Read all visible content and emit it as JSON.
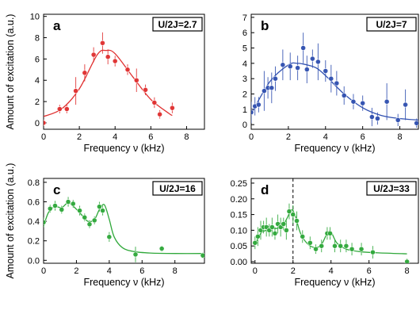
{
  "figure": {
    "ylabel_shared": "Amount of excitation (a.u.)"
  },
  "chart_data": [
    {
      "type": "scatter",
      "panel": "a",
      "badge": "U/2J=2.7",
      "xlabel": "Frequency ν (kHz)",
      "ylabel": "Amount of excitation (a.u.)",
      "xlim": [
        0,
        9
      ],
      "ylim": [
        -0.6,
        10.2
      ],
      "xticks": [
        0,
        2,
        4,
        6,
        8
      ],
      "yticks": [
        0,
        2,
        4,
        6,
        8,
        10
      ],
      "grid": false,
      "dashed_line_x": null,
      "color": "#e03030",
      "series": [
        {
          "points": [
            {
              "x": 0.0,
              "y": 0.0,
              "err": 0.3
            },
            {
              "x": 0.9,
              "y": 1.3,
              "err": 0.4
            },
            {
              "x": 1.3,
              "y": 1.3,
              "err": 0.4
            },
            {
              "x": 1.8,
              "y": 3.0,
              "err": 1.3
            },
            {
              "x": 2.3,
              "y": 4.7,
              "err": 0.8
            },
            {
              "x": 2.8,
              "y": 6.4,
              "err": 0.7
            },
            {
              "x": 3.3,
              "y": 7.5,
              "err": 1.0
            },
            {
              "x": 3.6,
              "y": 6.2,
              "err": 0.7
            },
            {
              "x": 4.0,
              "y": 5.8,
              "err": 0.5
            },
            {
              "x": 4.7,
              "y": 5.0,
              "err": 0.5
            },
            {
              "x": 5.2,
              "y": 4.0,
              "err": 1.1
            },
            {
              "x": 5.7,
              "y": 3.1,
              "err": 0.5
            },
            {
              "x": 6.2,
              "y": 1.9,
              "err": 0.5
            },
            {
              "x": 6.5,
              "y": 0.8,
              "err": 0.4
            },
            {
              "x": 7.2,
              "y": 1.4,
              "err": 0.5
            }
          ],
          "fit": {
            "x": [
              0,
              1,
              2,
              3,
              3.5,
              4,
              5,
              6,
              7,
              7.2
            ],
            "y": [
              0.6,
              1.3,
              3.2,
              6.4,
              6.8,
              6.5,
              4.3,
              2.2,
              0.9,
              0.7
            ]
          }
        }
      ]
    },
    {
      "type": "scatter",
      "panel": "b",
      "badge": "U/2J=7",
      "xlabel": "Frequency ν (kHz)",
      "ylabel": "",
      "xlim": [
        0,
        9
      ],
      "ylim": [
        -0.3,
        7.2
      ],
      "xticks": [
        0,
        2,
        4,
        6,
        8
      ],
      "yticks": [
        0,
        1,
        2,
        3,
        4,
        5,
        6,
        7
      ],
      "grid": false,
      "dashed_line_x": null,
      "color": "#3050b0",
      "series": [
        {
          "points": [
            {
              "x": 0.0,
              "y": 0.8,
              "err": 0.7
            },
            {
              "x": 0.2,
              "y": 1.2,
              "err": 0.6
            },
            {
              "x": 0.4,
              "y": 1.3,
              "err": 0.5
            },
            {
              "x": 0.7,
              "y": 2.2,
              "err": 1.3
            },
            {
              "x": 0.9,
              "y": 2.4,
              "err": 0.7
            },
            {
              "x": 1.1,
              "y": 2.4,
              "err": 1.0
            },
            {
              "x": 1.3,
              "y": 3.0,
              "err": 0.8
            },
            {
              "x": 1.7,
              "y": 3.9,
              "err": 1.0
            },
            {
              "x": 2.1,
              "y": 3.8,
              "err": 0.9
            },
            {
              "x": 2.5,
              "y": 3.7,
              "err": 0.8
            },
            {
              "x": 2.8,
              "y": 5.0,
              "err": 1.0
            },
            {
              "x": 3.0,
              "y": 3.6,
              "err": 0.9
            },
            {
              "x": 3.3,
              "y": 4.3,
              "err": 0.6
            },
            {
              "x": 3.6,
              "y": 4.1,
              "err": 1.2
            },
            {
              "x": 4.0,
              "y": 3.5,
              "err": 0.7
            },
            {
              "x": 4.3,
              "y": 3.0,
              "err": 0.9
            },
            {
              "x": 4.6,
              "y": 2.7,
              "err": 0.8
            },
            {
              "x": 5.0,
              "y": 1.9,
              "err": 0.6
            },
            {
              "x": 5.5,
              "y": 1.5,
              "err": 0.5
            },
            {
              "x": 6.0,
              "y": 1.4,
              "err": 0.5
            },
            {
              "x": 6.5,
              "y": 0.5,
              "err": 0.6
            },
            {
              "x": 6.8,
              "y": 0.4,
              "err": 0.4
            },
            {
              "x": 7.3,
              "y": 1.5,
              "err": 1.2
            },
            {
              "x": 7.9,
              "y": 0.3,
              "err": 0.4
            },
            {
              "x": 8.3,
              "y": 1.3,
              "err": 1.0
            },
            {
              "x": 8.9,
              "y": 0.1,
              "err": 0.3
            }
          ],
          "fit": {
            "x": [
              0,
              1,
              2,
              2.5,
              3,
              3.5,
              4,
              5,
              6,
              7,
              8,
              9
            ],
            "y": [
              0.7,
              2.8,
              3.9,
              4.0,
              3.9,
              3.7,
              3.2,
              2.0,
              1.1,
              0.6,
              0.4,
              0.3
            ]
          }
        }
      ]
    },
    {
      "type": "scatter",
      "panel": "c",
      "badge": "U/2J=16",
      "xlabel": "Frequency ν (kHz)",
      "ylabel": "Amount of excitation (a.u.)",
      "xlim": [
        0,
        9.8
      ],
      "ylim": [
        -0.03,
        0.84
      ],
      "xticks": [
        0,
        2,
        4,
        6,
        8
      ],
      "yticks": [
        0.0,
        0.2,
        0.4,
        0.6,
        0.8
      ],
      "grid": false,
      "dashed_line_x": null,
      "color": "#2fa83a",
      "series": [
        {
          "points": [
            {
              "x": 0.0,
              "y": 0.39,
              "err": 0.05
            },
            {
              "x": 0.4,
              "y": 0.53,
              "err": 0.04
            },
            {
              "x": 0.7,
              "y": 0.56,
              "err": 0.05
            },
            {
              "x": 1.1,
              "y": 0.52,
              "err": 0.04
            },
            {
              "x": 1.5,
              "y": 0.6,
              "err": 0.05
            },
            {
              "x": 1.8,
              "y": 0.58,
              "err": 0.04
            },
            {
              "x": 2.2,
              "y": 0.51,
              "err": 0.05
            },
            {
              "x": 2.5,
              "y": 0.44,
              "err": 0.04
            },
            {
              "x": 2.8,
              "y": 0.37,
              "err": 0.04
            },
            {
              "x": 3.1,
              "y": 0.41,
              "err": 0.04
            },
            {
              "x": 3.4,
              "y": 0.55,
              "err": 0.05
            },
            {
              "x": 3.6,
              "y": 0.51,
              "err": 0.05
            },
            {
              "x": 4.0,
              "y": 0.24,
              "err": 0.05
            },
            {
              "x": 5.6,
              "y": 0.06,
              "err": 0.08
            },
            {
              "x": 7.2,
              "y": 0.12,
              "err": 0.03
            },
            {
              "x": 9.7,
              "y": 0.05,
              "err": 0.03
            }
          ],
          "fit": {
            "x": [
              0,
              0.3,
              0.7,
              1.1,
              1.5,
              1.9,
              2.3,
              2.7,
              3.1,
              3.4,
              3.7,
              4.0,
              4.3,
              4.8,
              5.5,
              6.5,
              8,
              9.8
            ],
            "y": [
              0.35,
              0.49,
              0.55,
              0.54,
              0.59,
              0.54,
              0.47,
              0.4,
              0.42,
              0.52,
              0.57,
              0.42,
              0.24,
              0.13,
              0.09,
              0.075,
              0.07,
              0.07
            ]
          }
        }
      ]
    },
    {
      "type": "scatter",
      "panel": "d",
      "badge": "U/2J=33",
      "xlabel": "Frequency ν (kHz)",
      "ylabel": "",
      "xlim": [
        -0.2,
        8.6
      ],
      "ylim": [
        -0.005,
        0.265
      ],
      "xticks": [
        0,
        2,
        4,
        6,
        8
      ],
      "yticks": [
        0.0,
        0.05,
        0.1,
        0.15,
        0.2,
        0.25
      ],
      "grid": false,
      "dashed_line_x": 2.0,
      "color": "#2fa83a",
      "series": [
        {
          "points": [
            {
              "x": 0.0,
              "y": 0.06,
              "err": 0.02
            },
            {
              "x": 0.15,
              "y": 0.08,
              "err": 0.03
            },
            {
              "x": 0.3,
              "y": 0.1,
              "err": 0.03
            },
            {
              "x": 0.45,
              "y": 0.11,
              "err": 0.02
            },
            {
              "x": 0.6,
              "y": 0.11,
              "err": 0.03
            },
            {
              "x": 0.75,
              "y": 0.1,
              "err": 0.02
            },
            {
              "x": 0.9,
              "y": 0.11,
              "err": 0.03
            },
            {
              "x": 1.05,
              "y": 0.09,
              "err": 0.02
            },
            {
              "x": 1.2,
              "y": 0.12,
              "err": 0.03
            },
            {
              "x": 1.35,
              "y": 0.11,
              "err": 0.03
            },
            {
              "x": 1.5,
              "y": 0.12,
              "err": 0.02
            },
            {
              "x": 1.65,
              "y": 0.1,
              "err": 0.03
            },
            {
              "x": 1.8,
              "y": 0.16,
              "err": 0.025
            },
            {
              "x": 2.0,
              "y": 0.15,
              "err": 0.03
            },
            {
              "x": 2.2,
              "y": 0.13,
              "err": 0.03
            },
            {
              "x": 2.5,
              "y": 0.08,
              "err": 0.02
            },
            {
              "x": 2.9,
              "y": 0.06,
              "err": 0.02
            },
            {
              "x": 3.2,
              "y": 0.04,
              "err": 0.015
            },
            {
              "x": 3.5,
              "y": 0.05,
              "err": 0.02
            },
            {
              "x": 3.8,
              "y": 0.09,
              "err": 0.02
            },
            {
              "x": 3.95,
              "y": 0.09,
              "err": 0.02
            },
            {
              "x": 4.2,
              "y": 0.05,
              "err": 0.02
            },
            {
              "x": 4.5,
              "y": 0.05,
              "err": 0.02
            },
            {
              "x": 4.8,
              "y": 0.05,
              "err": 0.02
            },
            {
              "x": 5.1,
              "y": 0.04,
              "err": 0.02
            },
            {
              "x": 5.6,
              "y": 0.04,
              "err": 0.02
            },
            {
              "x": 6.2,
              "y": 0.03,
              "err": 0.02
            },
            {
              "x": 8.0,
              "y": 0.0,
              "err": 0.01
            }
          ],
          "fit": {
            "x": [
              0,
              0.3,
              0.6,
              1.0,
              1.4,
              1.7,
              1.9,
              2.1,
              2.4,
              2.8,
              3.2,
              3.5,
              3.8,
              4.0,
              4.3,
              4.8,
              5.5,
              6.5,
              8.0
            ],
            "y": [
              0.055,
              0.09,
              0.1,
              0.105,
              0.11,
              0.14,
              0.165,
              0.15,
              0.09,
              0.055,
              0.045,
              0.055,
              0.09,
              0.095,
              0.06,
              0.04,
              0.032,
              0.028,
              0.025
            ]
          }
        }
      ]
    }
  ]
}
